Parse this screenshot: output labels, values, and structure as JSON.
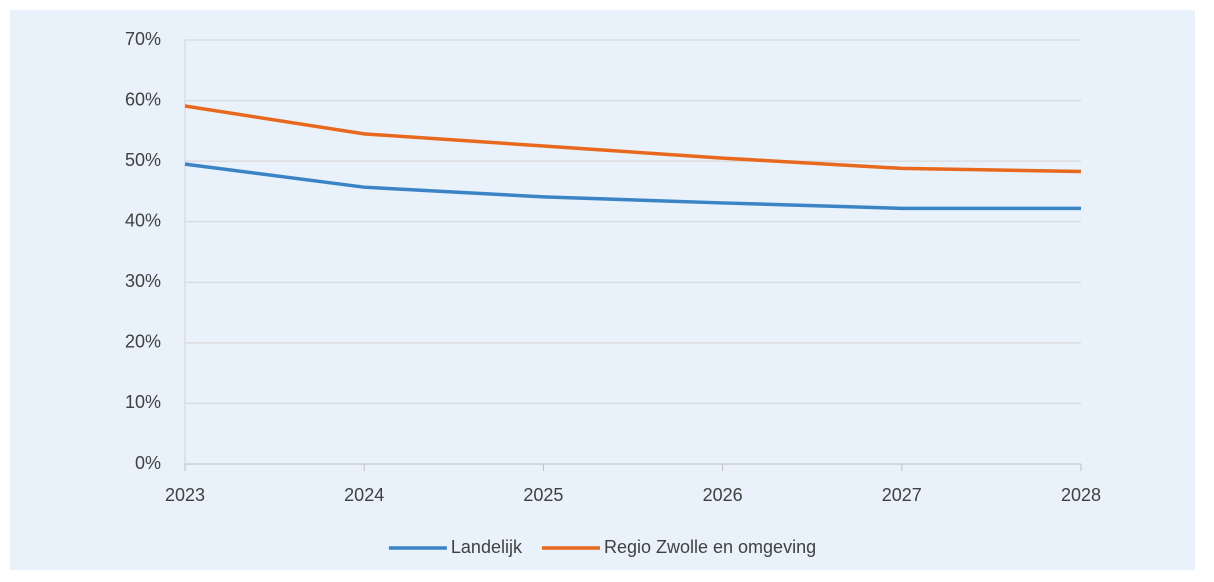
{
  "chart_data": {
    "type": "line",
    "x": [
      2023,
      2024,
      2025,
      2026,
      2027,
      2028
    ],
    "series": [
      {
        "name": "Landelijk",
        "color": "#3a84c6",
        "values": [
          49.5,
          45.7,
          44.1,
          43.1,
          42.2,
          42.2
        ]
      },
      {
        "name": "Regio Zwolle en omgeving",
        "color": "#e8691e",
        "values": [
          59.1,
          54.5,
          52.5,
          50.5,
          48.8,
          48.3
        ]
      }
    ],
    "xlim": [
      2023,
      2028
    ],
    "xticks": [
      2023,
      2024,
      2025,
      2026,
      2027,
      2028
    ],
    "ylim": [
      0,
      70
    ],
    "yticks": [
      {
        "value": 0,
        "label": "0%"
      },
      {
        "value": 10,
        "label": "10%"
      },
      {
        "value": 20,
        "label": "20%"
      },
      {
        "value": 30,
        "label": "30%"
      },
      {
        "value": 40,
        "label": "40%"
      },
      {
        "value": 50,
        "label": "50%"
      },
      {
        "value": 60,
        "label": "60%"
      },
      {
        "value": 70,
        "label": "70%"
      }
    ],
    "grid": true,
    "legend": "bottom"
  }
}
